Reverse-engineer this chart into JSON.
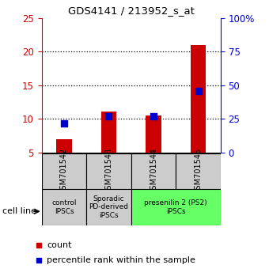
{
  "title": "GDS4141 / 213952_s_at",
  "samples": [
    "GSM701542",
    "GSM701543",
    "GSM701544",
    "GSM701545"
  ],
  "count_values": [
    7.0,
    11.1,
    10.5,
    21.0
  ],
  "percentile_values": [
    22,
    27,
    27,
    46
  ],
  "count_baseline": 5.0,
  "ylim_left": [
    5,
    25
  ],
  "ylim_right": [
    0,
    100
  ],
  "left_ticks": [
    5,
    10,
    15,
    20,
    25
  ],
  "right_ticks": [
    0,
    25,
    50,
    75,
    100
  ],
  "right_tick_labels": [
    "0",
    "25",
    "50",
    "75",
    "100%"
  ],
  "bar_color": "#cc0000",
  "dot_color": "#0000cc",
  "sample_box_color": "#cccccc",
  "bar_width": 0.35,
  "dot_size": 35,
  "left_tick_color": "#cc0000",
  "right_tick_color": "#0000cc",
  "group_defs": [
    {
      "label": "control\nIPSCs",
      "start": 0,
      "end": 0,
      "color": "#cccccc"
    },
    {
      "label": "Sporadic\nPD-derived\niPSCs",
      "start": 1,
      "end": 1,
      "color": "#cccccc"
    },
    {
      "label": "presenilin 2 (PS2)\niPSCs",
      "start": 2,
      "end": 3,
      "color": "#66ff66"
    }
  ],
  "legend_count": "count",
  "legend_pct": "percentile rank within the sample",
  "cell_line_label": "cell line"
}
